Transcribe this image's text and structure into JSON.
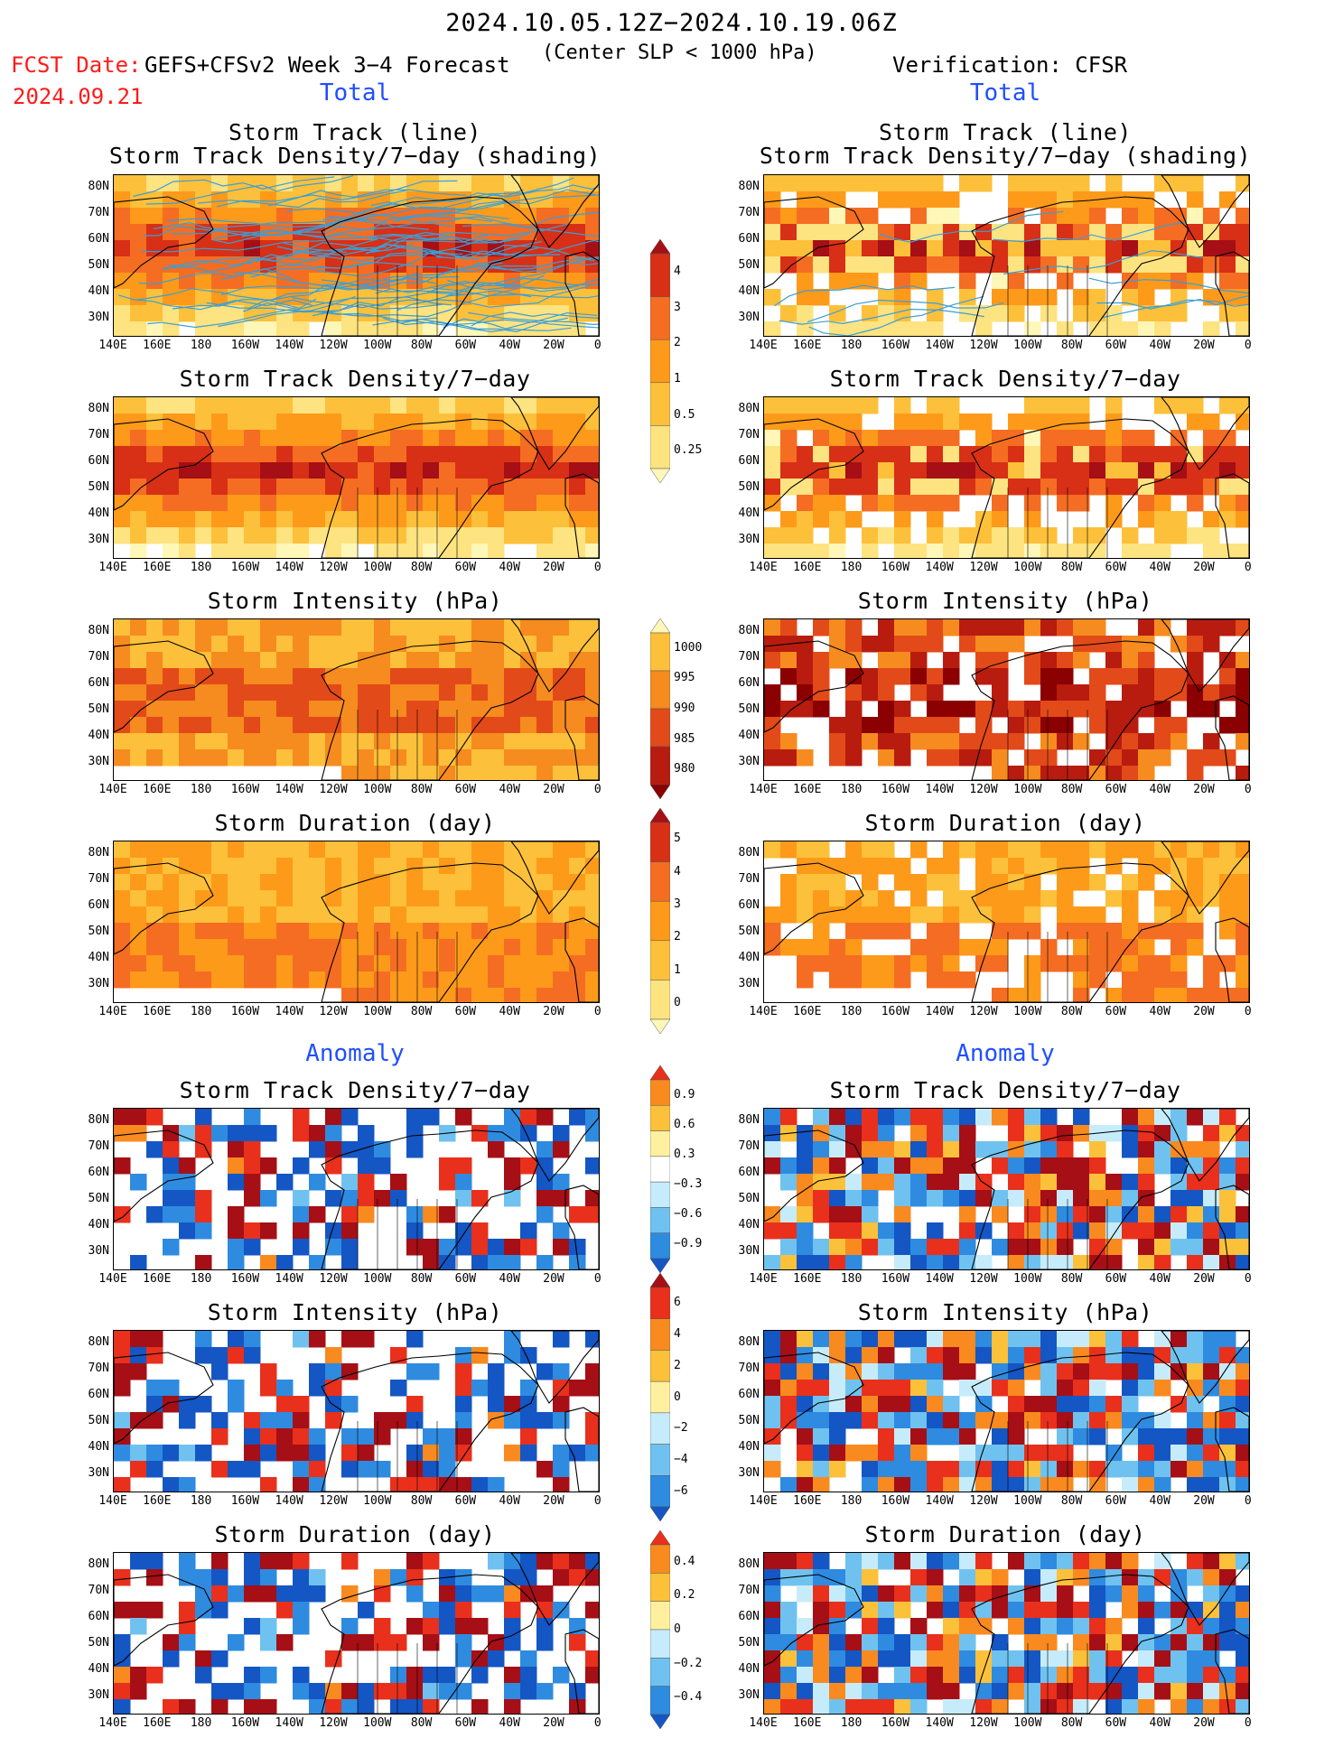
{
  "header": {
    "period": "2024.10.05.12Z−2024.10.19.06Z",
    "criterion": "(Center SLP < 1000 hPa)",
    "fcst_label": "FCST Date:",
    "fcst_date": "2024.09.21",
    "model": "GEFS+CFSv2 Week 3−4 Forecast",
    "verification": "Verification: CFSR"
  },
  "sections": {
    "total": "Total",
    "anomaly": "Anomaly"
  },
  "panel_titles": {
    "track_line": "Storm Track (line)",
    "track_shading": "Storm Track Density/7−day (shading)",
    "density": "Storm Track Density/7−day",
    "intensity": "Storm Intensity (hPa)",
    "duration": "Storm Duration (day)"
  },
  "axes": {
    "lat_labels": [
      "80N",
      "70N",
      "60N",
      "50N",
      "40N",
      "30N"
    ],
    "lon_labels": [
      "140E",
      "160E",
      "180",
      "160W",
      "140W",
      "120W",
      "100W",
      "80W",
      "60W",
      "40W",
      "20W",
      "0"
    ]
  },
  "colorbars": {
    "density_total": {
      "labels": [
        "4",
        "3",
        "2",
        "1",
        "0.5",
        "0.25"
      ],
      "colors": [
        "#a50f15",
        "#d73016",
        "#f46d22",
        "#fd9a1a",
        "#fdc03a",
        "#fee381",
        "#fff7b8"
      ]
    },
    "intensity_total": {
      "labels": [
        "1000",
        "995",
        "990",
        "985",
        "980"
      ],
      "colors": [
        "#fff7b8",
        "#fdc03a",
        "#f68b1f",
        "#e34a19",
        "#b71c0f",
        "#8b0000"
      ]
    },
    "duration_total": {
      "labels": [
        "5",
        "4",
        "3",
        "2",
        "1",
        "0"
      ],
      "colors": [
        "#a50f15",
        "#d73016",
        "#f46d22",
        "#fd9a1a",
        "#fdc03a",
        "#fee381",
        "#fff7b8"
      ]
    },
    "density_anom": {
      "labels": [
        "0.9",
        "0.6",
        "0.3",
        "−0.3",
        "−0.6",
        "−0.9"
      ],
      "colors": [
        "#e8301c",
        "#f98a1f",
        "#fbc13a",
        "#fff0a0",
        "#ffffff",
        "#c6ecfb",
        "#6fc2ef",
        "#2e8be0",
        "#1456c4"
      ]
    },
    "intensity_anom": {
      "labels": [
        "6",
        "4",
        "2",
        "0",
        "−2",
        "−4",
        "−6"
      ],
      "colors": [
        "#a50f15",
        "#e8301c",
        "#f98a1f",
        "#fbc13a",
        "#fff0a0",
        "#c6ecfb",
        "#6fc2ef",
        "#2e8be0",
        "#1456c4"
      ]
    },
    "duration_anom": {
      "labels": [
        "0.4",
        "0.2",
        "0",
        "−0.2",
        "−0.4"
      ],
      "colors": [
        "#e8301c",
        "#f98a1f",
        "#fbc13a",
        "#fff0a0",
        "#c6ecfb",
        "#6fc2ef",
        "#2e8be0",
        "#1456c4"
      ]
    }
  }
}
